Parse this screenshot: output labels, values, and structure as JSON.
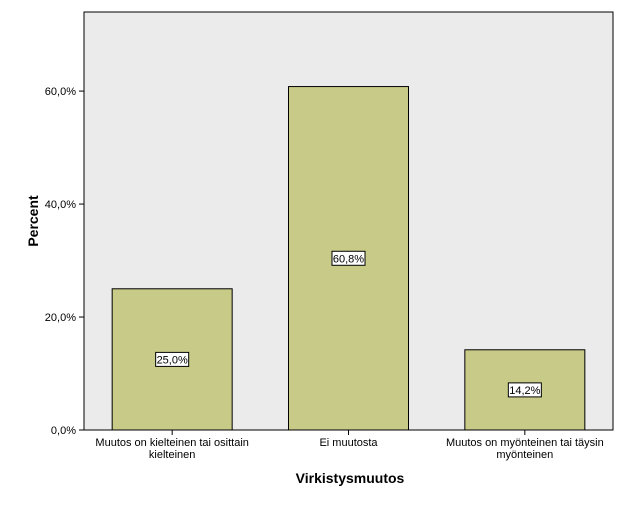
{
  "chart_data": {
    "type": "bar",
    "title": "",
    "xlabel": "Virkistysmuutos",
    "ylabel": "Percent",
    "categories": [
      [
        "Muutos on kielteinen tai osittain",
        "kielteinen"
      ],
      [
        "Ei muutosta"
      ],
      [
        "Muutos on myönteinen tai täysin",
        "myönteinen"
      ]
    ],
    "values": [
      25.0,
      60.8,
      14.2
    ],
    "value_labels": [
      "25,0%",
      "60,8%",
      "14,2%"
    ],
    "ylim": [
      0,
      74
    ],
    "yticks": [
      0,
      20,
      40,
      60
    ],
    "ytick_labels": [
      "0,0%",
      "20,0%",
      "40,0%",
      "60,0%"
    ],
    "grid": false,
    "colors": {
      "plot_background": "#ebebeb",
      "bar_fill": "#c8ca87",
      "bar_stroke": "#000000"
    }
  }
}
